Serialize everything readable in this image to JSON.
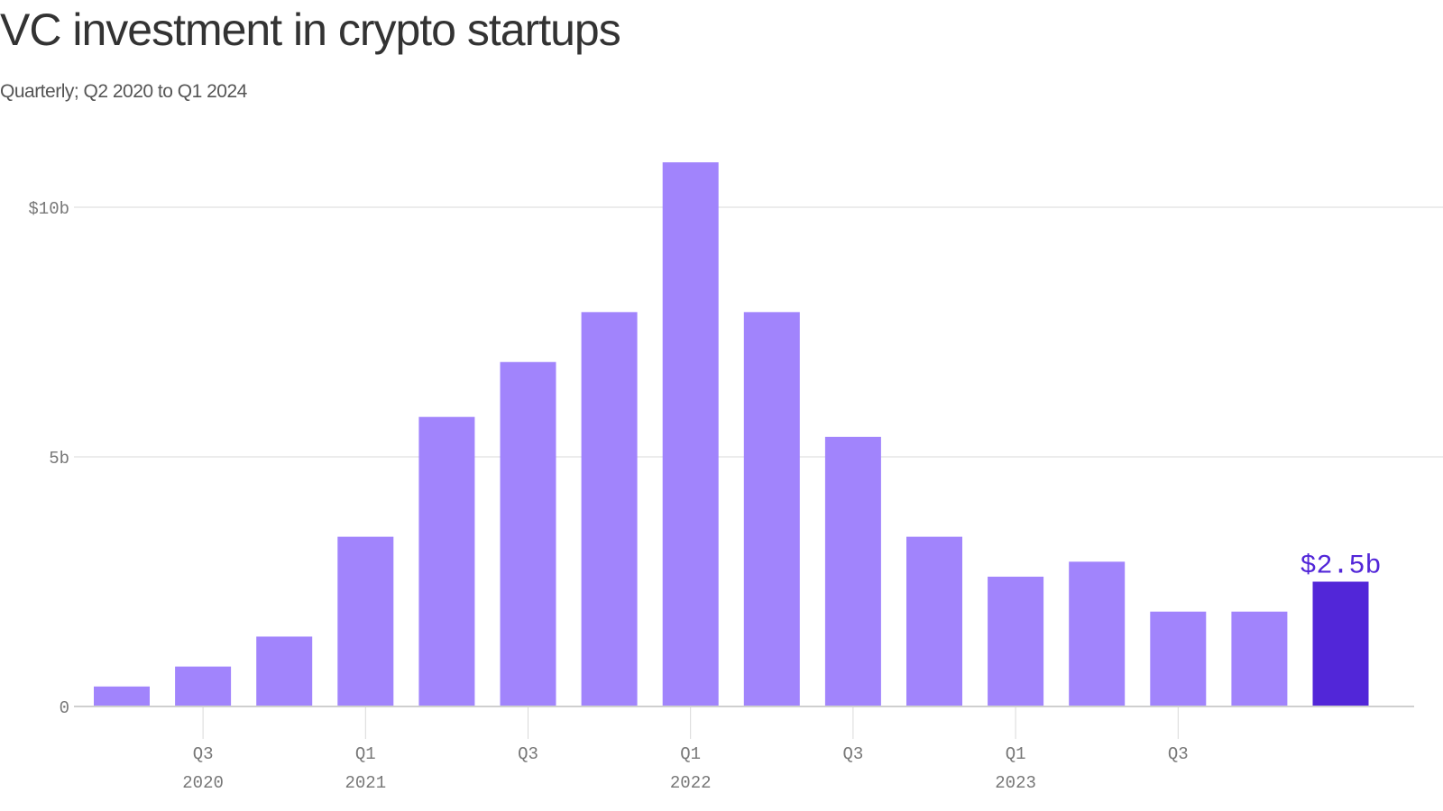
{
  "chart_data": {
    "type": "bar",
    "title": "VC investment in crypto startups",
    "subtitle": "Quarterly; Q2 2020 to Q1 2024",
    "categories": [
      "Q2 2020",
      "Q3 2020",
      "Q4 2020",
      "Q1 2021",
      "Q2 2021",
      "Q3 2021",
      "Q4 2021",
      "Q1 2022",
      "Q2 2022",
      "Q3 2022",
      "Q4 2022",
      "Q1 2023",
      "Q2 2023",
      "Q3 2023",
      "Q4 2023",
      "Q1 2024"
    ],
    "values": [
      0.4,
      0.8,
      1.4,
      3.4,
      5.8,
      6.9,
      7.9,
      10.9,
      7.9,
      5.4,
      3.4,
      2.6,
      2.9,
      1.9,
      1.9,
      2.5
    ],
    "unit": "billion USD",
    "ylim": [
      0,
      11
    ],
    "yticks": [
      {
        "value": 0,
        "label": "0"
      },
      {
        "value": 5,
        "label": "5b"
      },
      {
        "value": 10,
        "label": "$10b"
      }
    ],
    "xticks": [
      {
        "index": 1,
        "quarter": "Q3",
        "year": "2020"
      },
      {
        "index": 3,
        "quarter": "Q1",
        "year": "2021"
      },
      {
        "index": 5,
        "quarter": "Q3",
        "year": ""
      },
      {
        "index": 7,
        "quarter": "Q1",
        "year": "2022"
      },
      {
        "index": 9,
        "quarter": "Q3",
        "year": ""
      },
      {
        "index": 11,
        "quarter": "Q1",
        "year": "2023"
      },
      {
        "index": 13,
        "quarter": "Q3",
        "year": ""
      }
    ],
    "annotation": {
      "index": 15,
      "label": "$2.5b"
    },
    "grid": true,
    "colors": {
      "bar": "#a184fc",
      "highlight": "#5226d8",
      "grid": "#d9d9d9",
      "tick_text": "#777777"
    }
  }
}
